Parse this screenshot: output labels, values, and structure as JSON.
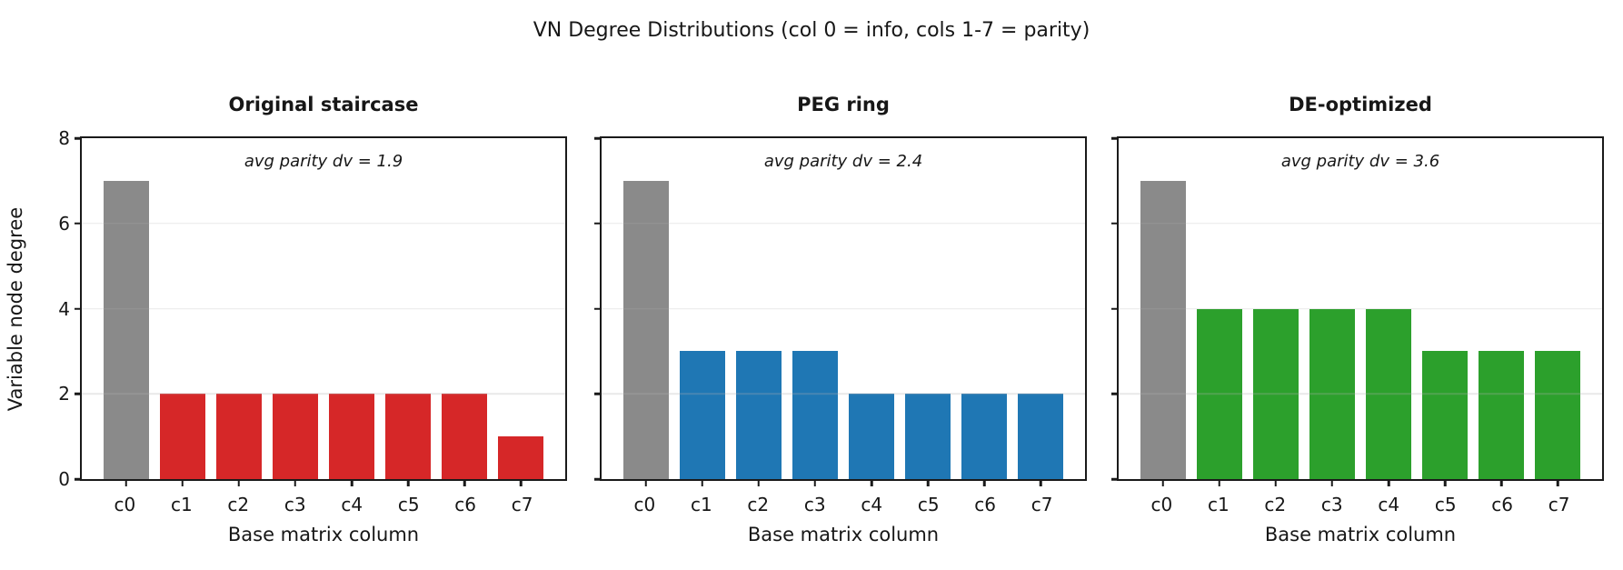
{
  "chart_data": {
    "type": "bar",
    "suptitle": "VN Degree Distributions (col 0 = info, cols 1-7 = parity)",
    "xlabel": "Base matrix column",
    "ylabel": "Variable node degree",
    "categories": [
      "c0",
      "c1",
      "c2",
      "c3",
      "c4",
      "c5",
      "c6",
      "c7"
    ],
    "ylim": [
      0,
      8
    ],
    "yticks": [
      0,
      2,
      4,
      6,
      8
    ],
    "grid_yticks": [
      2,
      4,
      6
    ],
    "grid": "light horizontal gridlines",
    "legend": "none",
    "info_bar_color": "#8a8a8a",
    "axis_color": "#1a1a1a",
    "subplots": [
      {
        "title": "Original staircase",
        "annotation": "avg parity dv = 1.9",
        "values": [
          7,
          2,
          2,
          2,
          2,
          2,
          2,
          1
        ],
        "bar_color": "#d62728",
        "show_ytick_labels": true
      },
      {
        "title": "PEG ring",
        "annotation": "avg parity dv = 2.4",
        "values": [
          7,
          3,
          3,
          3,
          2,
          2,
          2,
          2
        ],
        "bar_color": "#1f77b4",
        "show_ytick_labels": false
      },
      {
        "title": "DE-optimized",
        "annotation": "avg parity dv = 3.6",
        "values": [
          7,
          4,
          4,
          4,
          4,
          3,
          3,
          3
        ],
        "bar_color": "#2ca02c",
        "show_ytick_labels": false
      }
    ]
  }
}
